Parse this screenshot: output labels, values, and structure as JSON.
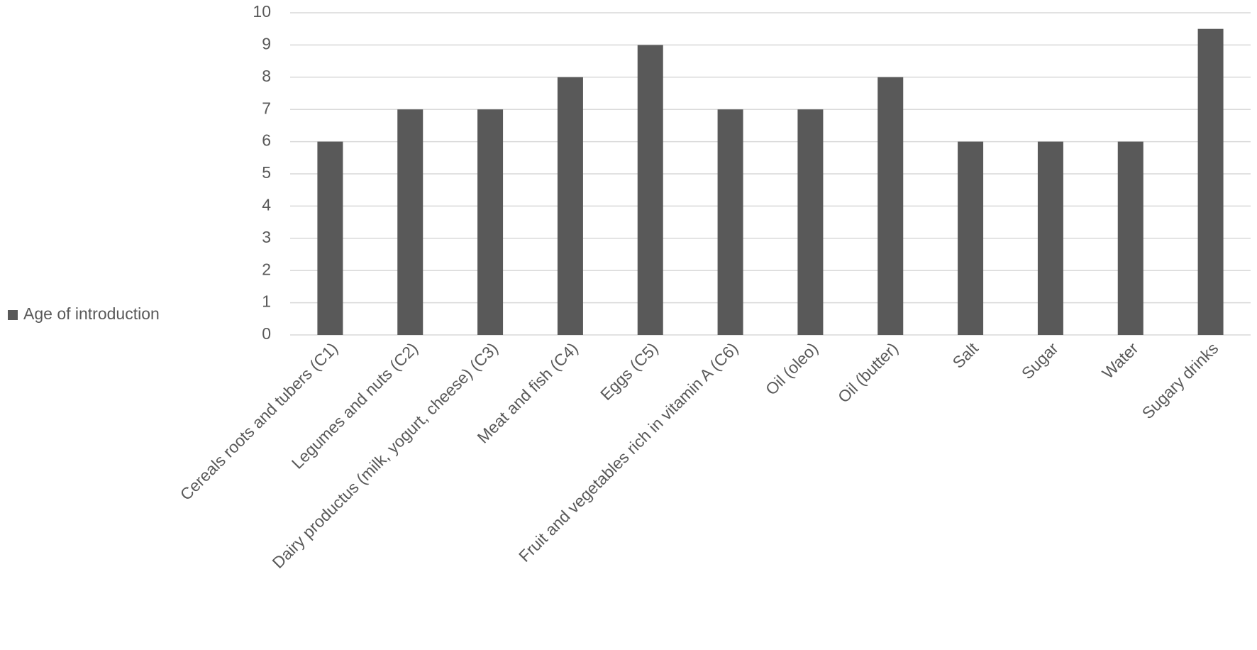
{
  "chart_data": {
    "type": "bar",
    "categories": [
      "Cereals roots and tubers (C1)",
      "Legumes and nuts (C2)",
      "Dairy productus (milk, yogurt, cheese) (C3)",
      "Meat and fish (C4)",
      "Eggs (C5)",
      "Fruit and vegetables rich in vitamin A (C6)",
      "Oil (oleo)",
      "Oil (butter)",
      "Salt",
      "Sugar",
      "Water",
      "Sugary drinks"
    ],
    "series": [
      {
        "name": "Age of introduction",
        "color": "#595959",
        "values": [
          6,
          7,
          7,
          8,
          9,
          7,
          7,
          8,
          6,
          6,
          6,
          9.5
        ]
      }
    ],
    "ylim": [
      0,
      10
    ],
    "yticks": [
      0,
      1,
      2,
      3,
      4,
      5,
      6,
      7,
      8,
      9,
      10
    ],
    "grid": true,
    "legend": "left"
  }
}
